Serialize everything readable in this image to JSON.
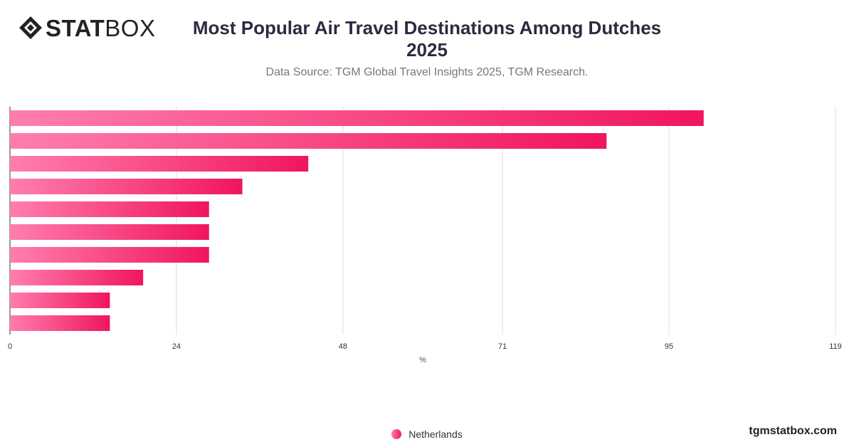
{
  "brand": {
    "logo_bold": "STAT",
    "logo_light": "BOX",
    "site": "tgmstatbox.com"
  },
  "header": {
    "title_line1": "Most Popular Air Travel Destinations Among Dutches",
    "title_line2": "2025",
    "subtitle": "Data Source: TGM Global Travel Insights 2025, TGM Research."
  },
  "colors": {
    "bar_start": "#ff7eae",
    "bar_end": "#f0155f",
    "grid": "#dddddd",
    "text": "#333333"
  },
  "legend": {
    "label": "Netherlands"
  },
  "chart_data": {
    "type": "bar",
    "orientation": "horizontal",
    "xlabel": "%",
    "ylabel": "",
    "xlim": [
      0,
      119
    ],
    "x_ticks": [
      "0",
      "24",
      "48",
      "71",
      "95",
      "119"
    ],
    "categories": [
      "",
      "",
      "",
      "",
      "",
      "",
      "",
      "",
      "",
      ""
    ],
    "series": [
      {
        "name": "Netherlands",
        "values": [
          100,
          86,
          43,
          33.5,
          28.7,
          28.7,
          28.7,
          19.2,
          14.4,
          14.4
        ]
      }
    ],
    "grid": true,
    "legend_position": "bottom-center"
  }
}
